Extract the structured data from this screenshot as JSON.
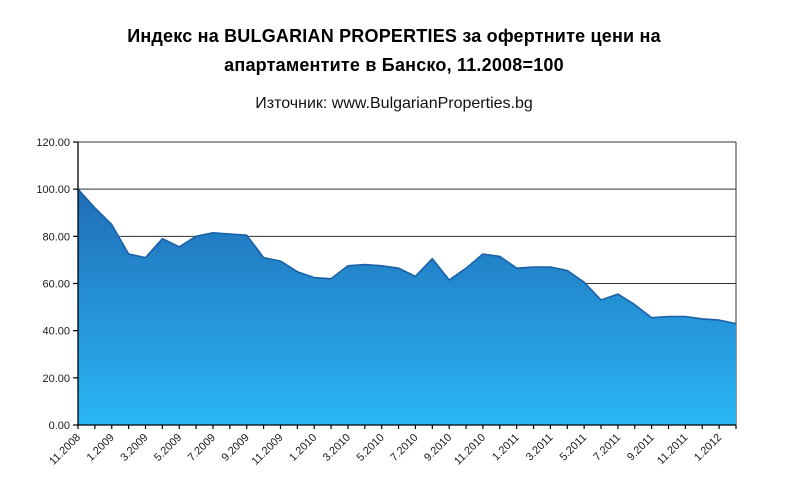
{
  "title": {
    "line1": "Индекс на BULGARIAN PROPERTIES за офертните цени на",
    "line2": "апартаментите в Банско, 11.2008=100"
  },
  "subtitle": "Източник: www.BulgarianProperties.bg",
  "chart_data": {
    "type": "area",
    "title": "Индекс на BULGARIAN PROPERTIES за офертните цени на апартаментите в Банско, 11.2008=100",
    "subtitle": "Източник: www.BulgarianProperties.bg",
    "categories": [
      "11.2008",
      "12.2008",
      "1.2009",
      "2.2009",
      "3.2009",
      "4.2009",
      "5.2009",
      "6.2009",
      "7.2009",
      "8.2009",
      "9.2009",
      "10.2009",
      "11.2009",
      "12.2009",
      "1.2010",
      "2.2010",
      "3.2010",
      "4.2010",
      "5.2010",
      "6.2010",
      "7.2010",
      "8.2010",
      "9.2010",
      "10.2010",
      "11.2010",
      "12.2010",
      "1.2011",
      "2.2011",
      "3.2011",
      "4.2011",
      "5.2011",
      "6.2011",
      "7.2011",
      "8.2011",
      "9.2011",
      "10.2011",
      "11.2011",
      "12.2011",
      "1.2012",
      "2.2012"
    ],
    "values": [
      100,
      92,
      85,
      72.5,
      71,
      79,
      75.5,
      80,
      81.5,
      81,
      80.5,
      71,
      69.5,
      65,
      62.5,
      62,
      67.5,
      68,
      67.5,
      66.5,
      63,
      70.5,
      61.5,
      66.5,
      72.5,
      71.5,
      66.5,
      67,
      67,
      65.5,
      60.5,
      53,
      55.5,
      51,
      45.5,
      46,
      46,
      45,
      44.5,
      43
    ],
    "xlabel": "",
    "ylabel": "",
    "ylim": [
      0,
      120
    ],
    "ytick_step": 20,
    "ytick_decimals": 2,
    "xtick_label_every": 2,
    "grid": true,
    "legend": false,
    "colors": {
      "area_gradient_top": "#1E5FA9",
      "area_gradient_bottom": "#29B6F5",
      "area_edge": "#1A60A8",
      "axis": "#000000",
      "gridline": "#333333",
      "text": "#1a1a1a"
    }
  }
}
